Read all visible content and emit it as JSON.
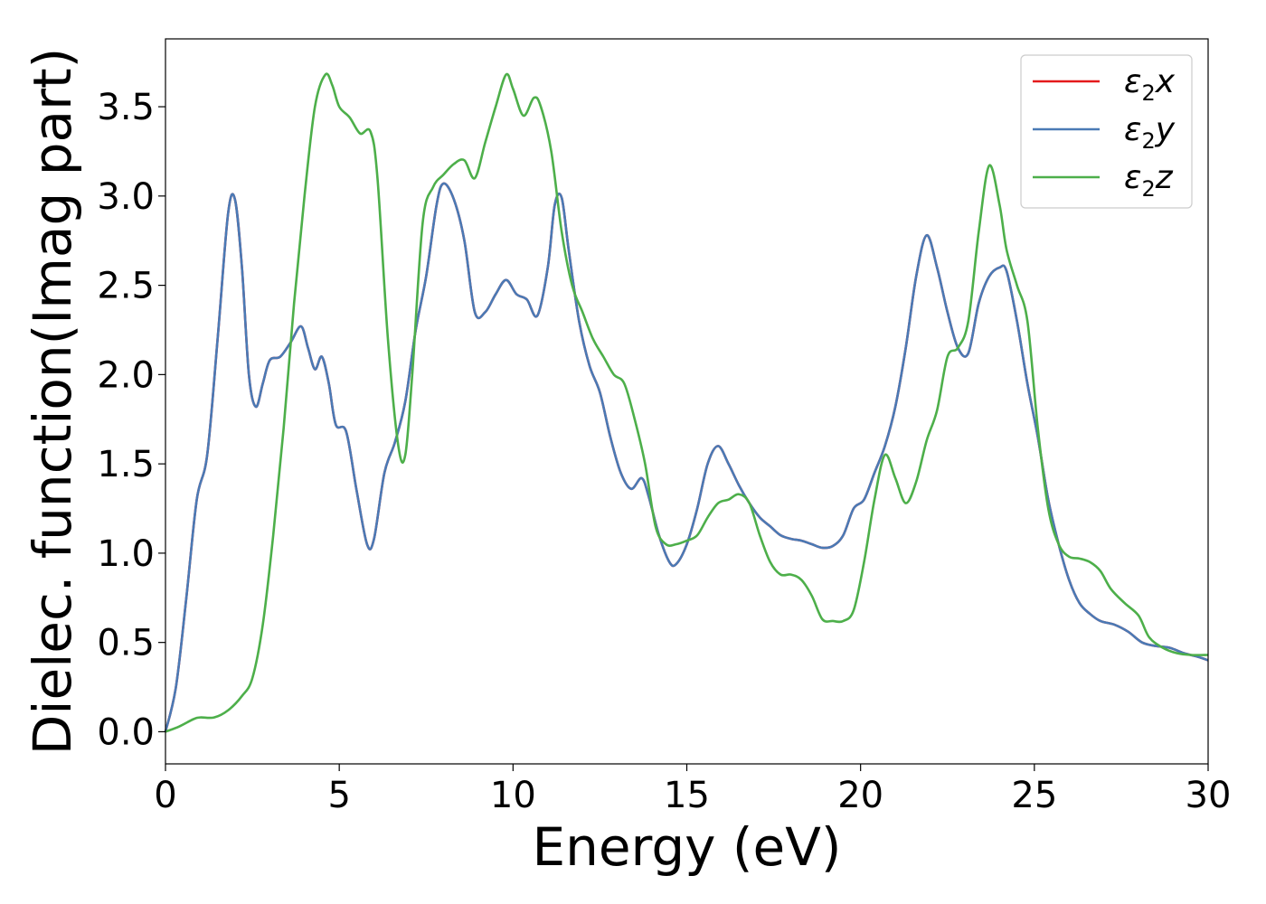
{
  "chart_data": {
    "type": "line",
    "title": "",
    "xlabel": "Energy (eV)",
    "ylabel": "Dielec. function(Imag part)",
    "xlim": [
      0,
      30
    ],
    "ylim": [
      -0.18,
      3.88
    ],
    "xticks": [
      0,
      5,
      10,
      15,
      20,
      25,
      30
    ],
    "xtick_labels": [
      "0",
      "5",
      "10",
      "15",
      "20",
      "25",
      "30"
    ],
    "yticks": [
      0.0,
      0.5,
      1.0,
      1.5,
      2.0,
      2.5,
      3.0,
      3.5
    ],
    "ytick_labels": [
      "0.0",
      "0.5",
      "1.0",
      "1.5",
      "2.0",
      "2.5",
      "3.0",
      "3.5"
    ],
    "grid": false,
    "legend_position": "top-right",
    "series": [
      {
        "name": "ε2x",
        "legend_main": "ε",
        "legend_sub": "2",
        "legend_suffix": "x",
        "color": "#e41a1c",
        "x": [
          0,
          0.3,
          0.6,
          0.9,
          1.2,
          1.5,
          1.8,
          2.0,
          2.2,
          2.4,
          2.6,
          2.8,
          3.0,
          3.3,
          3.6,
          3.9,
          4.1,
          4.3,
          4.5,
          4.7,
          4.9,
          5.2,
          5.5,
          5.8,
          6.0,
          6.3,
          6.6,
          6.9,
          7.2,
          7.5,
          7.8,
          8.0,
          8.3,
          8.6,
          8.9,
          9.2,
          9.5,
          9.8,
          10.1,
          10.4,
          10.7,
          11.0,
          11.2,
          11.4,
          11.6,
          11.9,
          12.2,
          12.5,
          12.8,
          13.1,
          13.4,
          13.7,
          13.9,
          14.2,
          14.5,
          14.7,
          15.0,
          15.3,
          15.6,
          15.9,
          16.2,
          16.5,
          16.8,
          17.1,
          17.4,
          17.7,
          18.0,
          18.3,
          18.6,
          18.9,
          19.2,
          19.5,
          19.8,
          20.1,
          20.4,
          20.7,
          21.0,
          21.3,
          21.6,
          21.9,
          22.2,
          22.5,
          22.8,
          23.1,
          23.4,
          23.7,
          24.0,
          24.2,
          24.5,
          24.8,
          25.1,
          25.4,
          25.7,
          26.0,
          26.3,
          26.6,
          26.9,
          27.3,
          27.7,
          28.1,
          28.5,
          28.9,
          29.3,
          29.7,
          30.0
        ],
        "y": [
          0.0,
          0.25,
          0.75,
          1.3,
          1.55,
          2.2,
          2.9,
          2.98,
          2.6,
          2.0,
          1.82,
          1.95,
          2.08,
          2.1,
          2.18,
          2.27,
          2.15,
          2.03,
          2.1,
          1.95,
          1.72,
          1.68,
          1.35,
          1.05,
          1.08,
          1.45,
          1.62,
          1.85,
          2.25,
          2.55,
          2.95,
          3.07,
          2.98,
          2.75,
          2.35,
          2.35,
          2.45,
          2.53,
          2.45,
          2.42,
          2.33,
          2.6,
          2.95,
          2.99,
          2.7,
          2.3,
          2.05,
          1.9,
          1.65,
          1.45,
          1.36,
          1.42,
          1.32,
          1.1,
          0.95,
          0.94,
          1.05,
          1.25,
          1.5,
          1.6,
          1.5,
          1.38,
          1.28,
          1.2,
          1.15,
          1.1,
          1.08,
          1.07,
          1.05,
          1.03,
          1.04,
          1.1,
          1.25,
          1.3,
          1.45,
          1.6,
          1.82,
          2.15,
          2.55,
          2.78,
          2.6,
          2.35,
          2.15,
          2.12,
          2.4,
          2.55,
          2.6,
          2.58,
          2.3,
          1.95,
          1.65,
          1.3,
          1.05,
          0.85,
          0.72,
          0.66,
          0.62,
          0.6,
          0.56,
          0.5,
          0.48,
          0.47,
          0.44,
          0.42,
          0.4
        ]
      },
      {
        "name": "ε2y",
        "legend_main": "ε",
        "legend_sub": "2",
        "legend_suffix": "y",
        "color": "#4a7ab5",
        "x": [
          0,
          0.3,
          0.6,
          0.9,
          1.2,
          1.5,
          1.8,
          2.0,
          2.2,
          2.4,
          2.6,
          2.8,
          3.0,
          3.3,
          3.6,
          3.9,
          4.1,
          4.3,
          4.5,
          4.7,
          4.9,
          5.2,
          5.5,
          5.8,
          6.0,
          6.3,
          6.6,
          6.9,
          7.2,
          7.5,
          7.8,
          8.0,
          8.3,
          8.6,
          8.9,
          9.2,
          9.5,
          9.8,
          10.1,
          10.4,
          10.7,
          11.0,
          11.2,
          11.4,
          11.6,
          11.9,
          12.2,
          12.5,
          12.8,
          13.1,
          13.4,
          13.7,
          13.9,
          14.2,
          14.5,
          14.7,
          15.0,
          15.3,
          15.6,
          15.9,
          16.2,
          16.5,
          16.8,
          17.1,
          17.4,
          17.7,
          18.0,
          18.3,
          18.6,
          18.9,
          19.2,
          19.5,
          19.8,
          20.1,
          20.4,
          20.7,
          21.0,
          21.3,
          21.6,
          21.9,
          22.2,
          22.5,
          22.8,
          23.1,
          23.4,
          23.7,
          24.0,
          24.2,
          24.5,
          24.8,
          25.1,
          25.4,
          25.7,
          26.0,
          26.3,
          26.6,
          26.9,
          27.3,
          27.7,
          28.1,
          28.5,
          28.9,
          29.3,
          29.7,
          30.0
        ],
        "y": [
          0.0,
          0.25,
          0.75,
          1.3,
          1.55,
          2.2,
          2.9,
          2.98,
          2.6,
          2.0,
          1.82,
          1.95,
          2.08,
          2.1,
          2.18,
          2.27,
          2.15,
          2.03,
          2.1,
          1.95,
          1.72,
          1.68,
          1.35,
          1.05,
          1.08,
          1.45,
          1.62,
          1.85,
          2.25,
          2.55,
          2.95,
          3.07,
          2.98,
          2.75,
          2.35,
          2.35,
          2.45,
          2.53,
          2.45,
          2.42,
          2.33,
          2.6,
          2.95,
          2.99,
          2.7,
          2.3,
          2.05,
          1.9,
          1.65,
          1.45,
          1.36,
          1.42,
          1.32,
          1.1,
          0.95,
          0.94,
          1.05,
          1.25,
          1.5,
          1.6,
          1.5,
          1.38,
          1.28,
          1.2,
          1.15,
          1.1,
          1.08,
          1.07,
          1.05,
          1.03,
          1.04,
          1.1,
          1.25,
          1.3,
          1.45,
          1.6,
          1.82,
          2.15,
          2.55,
          2.78,
          2.6,
          2.35,
          2.15,
          2.12,
          2.4,
          2.55,
          2.6,
          2.58,
          2.3,
          1.95,
          1.65,
          1.3,
          1.05,
          0.85,
          0.72,
          0.66,
          0.62,
          0.6,
          0.56,
          0.5,
          0.48,
          0.47,
          0.44,
          0.42,
          0.4
        ]
      },
      {
        "name": "ε2z",
        "legend_main": "ε",
        "legend_sub": "2",
        "legend_suffix": "z",
        "color": "#4daf4a",
        "x": [
          0,
          0.4,
          0.8,
          1.0,
          1.4,
          1.8,
          2.2,
          2.5,
          2.8,
          3.1,
          3.4,
          3.7,
          4.0,
          4.3,
          4.6,
          4.8,
          5.0,
          5.3,
          5.6,
          5.9,
          6.1,
          6.4,
          6.7,
          6.9,
          7.1,
          7.4,
          7.7,
          8.0,
          8.3,
          8.6,
          8.9,
          9.2,
          9.5,
          9.8,
          10.0,
          10.3,
          10.6,
          10.8,
          11.1,
          11.4,
          11.7,
          12.0,
          12.3,
          12.6,
          12.9,
          13.2,
          13.5,
          13.8,
          14.1,
          14.4,
          14.7,
          15.0,
          15.3,
          15.6,
          15.9,
          16.2,
          16.5,
          16.8,
          17.1,
          17.4,
          17.7,
          18.0,
          18.3,
          18.6,
          18.9,
          19.2,
          19.5,
          19.8,
          20.1,
          20.4,
          20.7,
          21.0,
          21.3,
          21.6,
          21.9,
          22.2,
          22.5,
          22.8,
          23.1,
          23.4,
          23.7,
          24.0,
          24.2,
          24.5,
          24.8,
          25.1,
          25.4,
          25.7,
          26.0,
          26.3,
          26.6,
          26.9,
          27.2,
          27.6,
          28.0,
          28.3,
          28.7,
          29.1,
          29.5,
          30.0
        ],
        "y": [
          0.0,
          0.03,
          0.07,
          0.08,
          0.08,
          0.12,
          0.2,
          0.3,
          0.6,
          1.1,
          1.7,
          2.4,
          3.0,
          3.5,
          3.68,
          3.62,
          3.5,
          3.44,
          3.35,
          3.36,
          3.1,
          2.2,
          1.6,
          1.55,
          2.0,
          2.85,
          3.05,
          3.12,
          3.18,
          3.2,
          3.1,
          3.3,
          3.5,
          3.68,
          3.6,
          3.45,
          3.55,
          3.5,
          3.25,
          2.8,
          2.5,
          2.35,
          2.2,
          2.1,
          2.0,
          1.95,
          1.75,
          1.5,
          1.15,
          1.05,
          1.05,
          1.07,
          1.1,
          1.2,
          1.28,
          1.3,
          1.33,
          1.28,
          1.1,
          0.95,
          0.88,
          0.88,
          0.85,
          0.76,
          0.63,
          0.62,
          0.62,
          0.68,
          0.95,
          1.3,
          1.55,
          1.42,
          1.28,
          1.4,
          1.63,
          1.8,
          2.1,
          2.15,
          2.3,
          2.8,
          3.17,
          2.95,
          2.7,
          2.5,
          2.3,
          1.7,
          1.25,
          1.05,
          0.98,
          0.97,
          0.95,
          0.9,
          0.8,
          0.72,
          0.65,
          0.53,
          0.47,
          0.44,
          0.43,
          0.43
        ]
      }
    ]
  }
}
